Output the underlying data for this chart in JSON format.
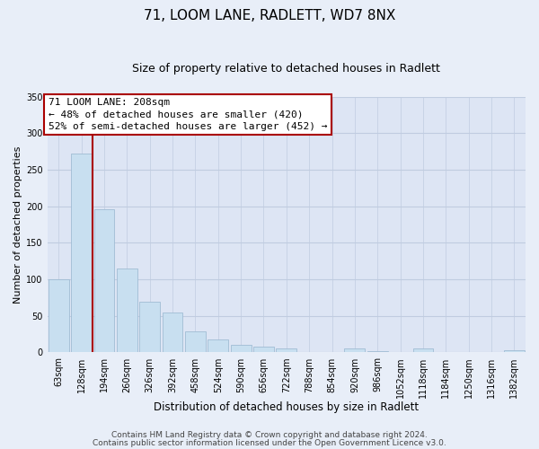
{
  "title": "71, LOOM LANE, RADLETT, WD7 8NX",
  "subtitle": "Size of property relative to detached houses in Radlett",
  "xlabel": "Distribution of detached houses by size in Radlett",
  "ylabel": "Number of detached properties",
  "bin_labels": [
    "63sqm",
    "128sqm",
    "194sqm",
    "260sqm",
    "326sqm",
    "392sqm",
    "458sqm",
    "524sqm",
    "590sqm",
    "656sqm",
    "722sqm",
    "788sqm",
    "854sqm",
    "920sqm",
    "986sqm",
    "1052sqm",
    "1118sqm",
    "1184sqm",
    "1250sqm",
    "1316sqm",
    "1382sqm"
  ],
  "bar_heights": [
    100,
    272,
    196,
    115,
    70,
    55,
    29,
    18,
    11,
    8,
    5,
    0,
    0,
    5,
    2,
    0,
    5,
    0,
    0,
    0,
    3
  ],
  "bar_color": "#c8dff0",
  "bar_edge_color": "#a0bcd4",
  "vline_x": 1.5,
  "vline_color": "#aa0000",
  "ylim": [
    0,
    350
  ],
  "yticks": [
    0,
    50,
    100,
    150,
    200,
    250,
    300,
    350
  ],
  "annotation_title": "71 LOOM LANE: 208sqm",
  "annotation_line1": "← 48% of detached houses are smaller (420)",
  "annotation_line2": "52% of semi-detached houses are larger (452) →",
  "annotation_box_color": "#ffffff",
  "annotation_box_edge": "#aa0000",
  "footer_line1": "Contains HM Land Registry data © Crown copyright and database right 2024.",
  "footer_line2": "Contains public sector information licensed under the Open Government Licence v3.0.",
  "background_color": "#e8eef8",
  "plot_bg_color": "#dde5f4",
  "grid_color": "#c0cce0",
  "title_fontsize": 11,
  "subtitle_fontsize": 9,
  "xlabel_fontsize": 8.5,
  "ylabel_fontsize": 8,
  "footer_fontsize": 6.5,
  "tick_fontsize": 7,
  "annot_fontsize": 8
}
